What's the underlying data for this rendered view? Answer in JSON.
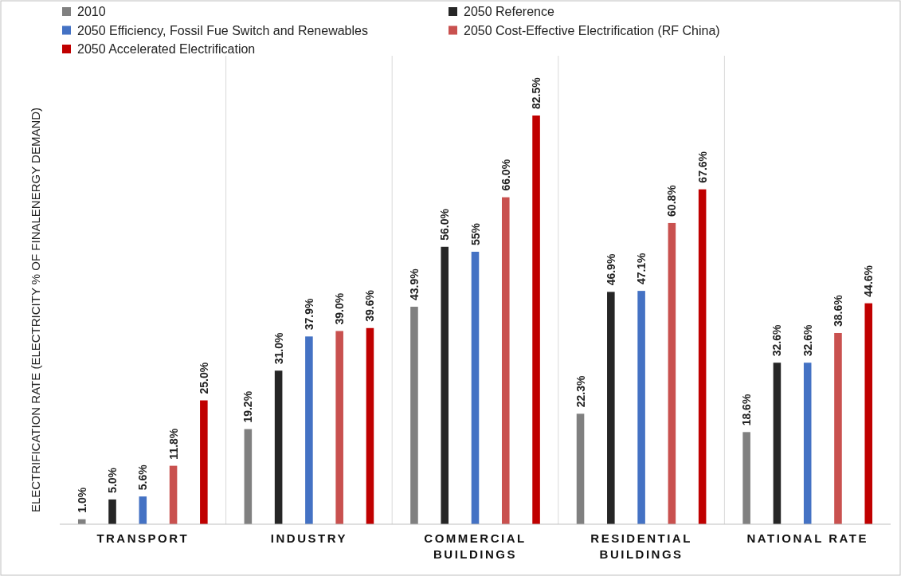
{
  "chart_data": {
    "type": "bar",
    "ylabel": "ELECTRIFICATION RATE (ELECTRICITY  % OF FINALENERGY DEMAND)",
    "categories": [
      "TRANSPORT",
      "INDUSTRY",
      "COMMERCIAL BUILDINGS",
      "RESIDENTIAL BUILDINGS",
      "NATIONAL RATE"
    ],
    "legend": "top",
    "series": [
      {
        "name": "2010",
        "color": "#808080",
        "values": [
          1.0,
          19.2,
          43.9,
          22.3,
          18.6
        ],
        "value_labels": [
          "1.0%",
          "19.2%",
          "43.9%",
          "22.3%",
          "18.6%"
        ]
      },
      {
        "name": "2050 Reference",
        "color": "#262626",
        "values": [
          5.0,
          31.0,
          56.0,
          46.9,
          32.6
        ],
        "value_labels": [
          "5.0%",
          "31.0%",
          "56.0%",
          "46.9%",
          "32.6%"
        ]
      },
      {
        "name": "2050 Efficiency, Fossil Fue Switch and Renewables",
        "color": "#4472c4",
        "values": [
          5.6,
          37.9,
          55,
          47.1,
          32.6
        ],
        "value_labels": [
          "5.6%",
          "37.9%",
          "55%",
          "47.1%",
          "32.6%"
        ]
      },
      {
        "name": "2050 Cost-Effective Electrification (RF China)",
        "color": "#c9514f",
        "values": [
          11.8,
          39.0,
          66.0,
          60.8,
          38.6
        ],
        "value_labels": [
          "11.8%",
          "39.0%",
          "66.0%",
          "60.8%",
          "38.6%"
        ]
      },
      {
        "name": "2050 Accelerated Electrification",
        "color": "#c00000",
        "values": [
          25.0,
          39.6,
          82.5,
          67.6,
          44.6
        ],
        "value_labels": [
          "25.0%",
          "39.6%",
          "82.5%",
          "67.6%",
          "44.6%"
        ]
      }
    ]
  }
}
